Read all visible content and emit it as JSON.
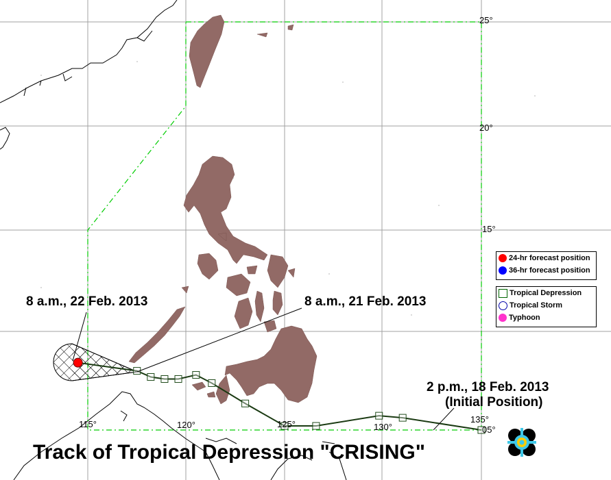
{
  "title": "Track of Tropical Depression \"CRISING\"",
  "lat_labels": [
    "25°",
    "20°",
    "15°",
    "05°"
  ],
  "lon_labels": [
    "115°",
    "120°",
    "125°",
    "130°",
    "135°"
  ],
  "annotations": {
    "forecast_label": "8 a.m., 22 Feb. 2013",
    "current_label": "8 a.m., 21 Feb. 2013",
    "initial_label_line1": "2 p.m., 18 Feb. 2013",
    "initial_label_line2": "(Initial Position)"
  },
  "legend_forecast": [
    {
      "label": "24-hr forecast position",
      "color": "#ff0000",
      "icon": "red-dot-icon"
    },
    {
      "label": "36-hr forecast position",
      "color": "#0000ff",
      "icon": "blue-dot-icon"
    }
  ],
  "legend_intensity": [
    {
      "label": "Tropical Depression",
      "icon": "square-icon",
      "color": "#006400"
    },
    {
      "label": "Tropical Storm",
      "icon": "circle-icon",
      "color": "#0000aa"
    },
    {
      "label": "Typhoon",
      "icon": "magenta-dot-icon",
      "color": "#ff33cc"
    }
  ],
  "colors": {
    "land": "#926a66",
    "track": "#1a3a12",
    "par_boundary": "#00cc00",
    "grid": "#a0a0a0"
  },
  "track_positions_lonlat": [
    [
      135.0,
      5.0
    ],
    [
      131.0,
      5.6
    ],
    [
      129.8,
      5.7
    ],
    [
      126.6,
      5.2
    ],
    [
      125.0,
      5.2
    ],
    [
      123.0,
      6.3
    ],
    [
      121.3,
      7.3
    ],
    [
      120.5,
      7.7
    ],
    [
      119.6,
      7.5
    ],
    [
      118.9,
      7.5
    ],
    [
      118.2,
      7.6
    ],
    [
      117.5,
      7.9
    ]
  ],
  "forecast_24hr_lonlat": [
    114.5,
    8.3
  ]
}
